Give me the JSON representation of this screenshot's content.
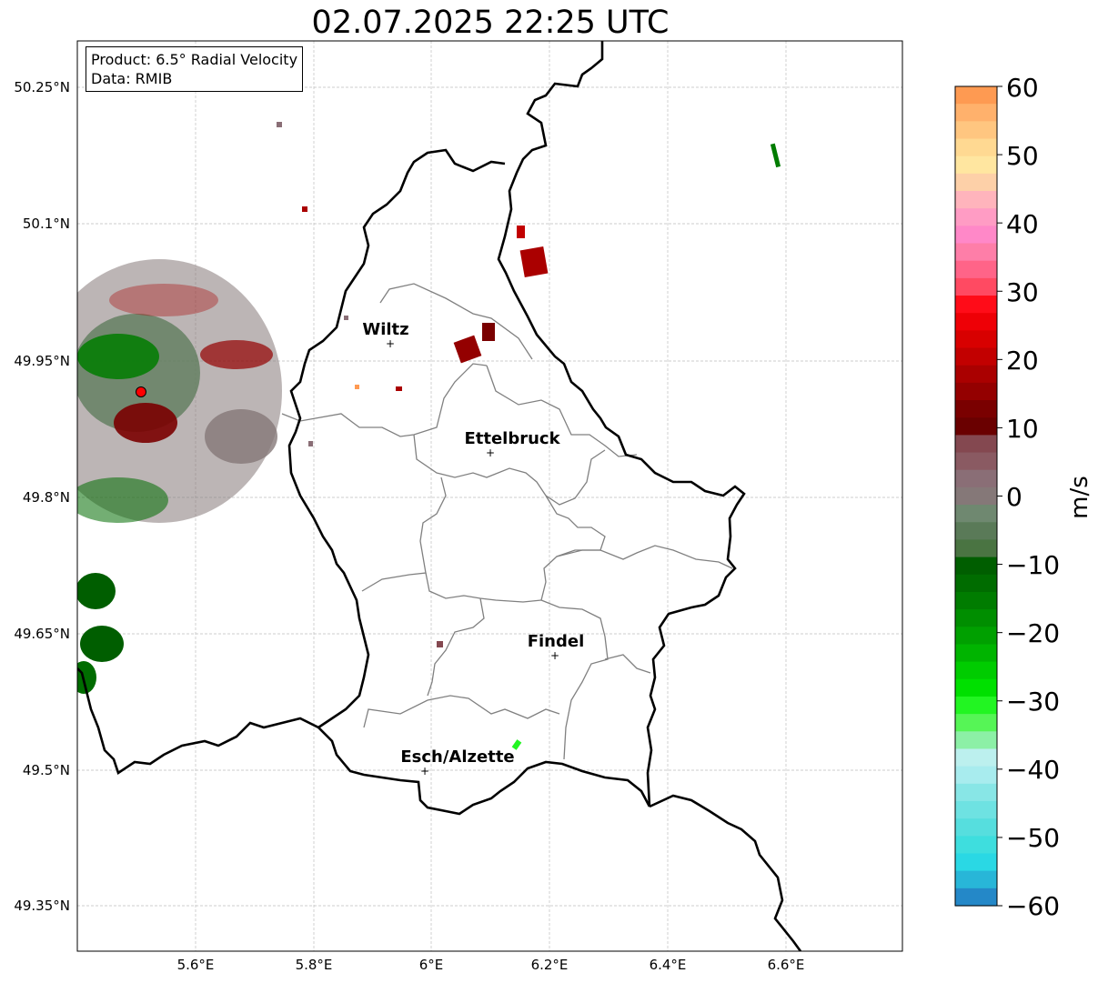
{
  "title": "02.07.2025 22:25 UTC",
  "info": {
    "product": "Product: 6.5° Radial Velocity",
    "data": "Data: RMIB"
  },
  "map": {
    "lat_ticks": [
      "50.25°N",
      "50.1°N",
      "49.95°N",
      "49.8°N",
      "49.65°N",
      "49.5°N",
      "49.35°N"
    ],
    "lon_ticks": [
      "5.6°E",
      "5.8°E",
      "6°E",
      "6.2°E",
      "6.4°E",
      "6.6°E"
    ],
    "cities": [
      {
        "name": "Wiltz"
      },
      {
        "name": "Ettelbruck"
      },
      {
        "name": "Findel"
      },
      {
        "name": "Esch/Alzette"
      }
    ],
    "radar_site_color": "#ff0000",
    "border_color": "#000000",
    "canton_color": "#808080"
  },
  "colorbar": {
    "label": "m/s",
    "ticks": [
      "60",
      "50",
      "40",
      "30",
      "20",
      "10",
      "0",
      "−10",
      "−20",
      "−30",
      "−40",
      "−50",
      "−60"
    ],
    "min": -60,
    "max": 60,
    "colors_top_to_bottom": [
      "#fe9a52",
      "#ffb16c",
      "#ffc680",
      "#ffd992",
      "#ffe6a0",
      "#fdd0a8",
      "#ffb4bc",
      "#ff9cc4",
      "#ff88c8",
      "#fe7ea8",
      "#ff6488",
      "#ff4a62",
      "#ff0c18",
      "#ee0006",
      "#d80000",
      "#c20000",
      "#aa0000",
      "#940000",
      "#7a0000",
      "#6a0000",
      "#844850",
      "#8a5a62",
      "#8a6e76",
      "#857878",
      "#6f8870",
      "#5a7a58",
      "#4a7442",
      "#005e00",
      "#006c00",
      "#007c00",
      "#008e00",
      "#00a000",
      "#00b400",
      "#00cc00",
      "#00e000",
      "#22f522",
      "#56f556",
      "#8cf0a6",
      "#bcf0ee",
      "#a8ecee",
      "#88e6e6",
      "#6ee2e2",
      "#56dede",
      "#3edede",
      "#2ad8e4",
      "#28b6d8",
      "#2488c8"
    ]
  }
}
